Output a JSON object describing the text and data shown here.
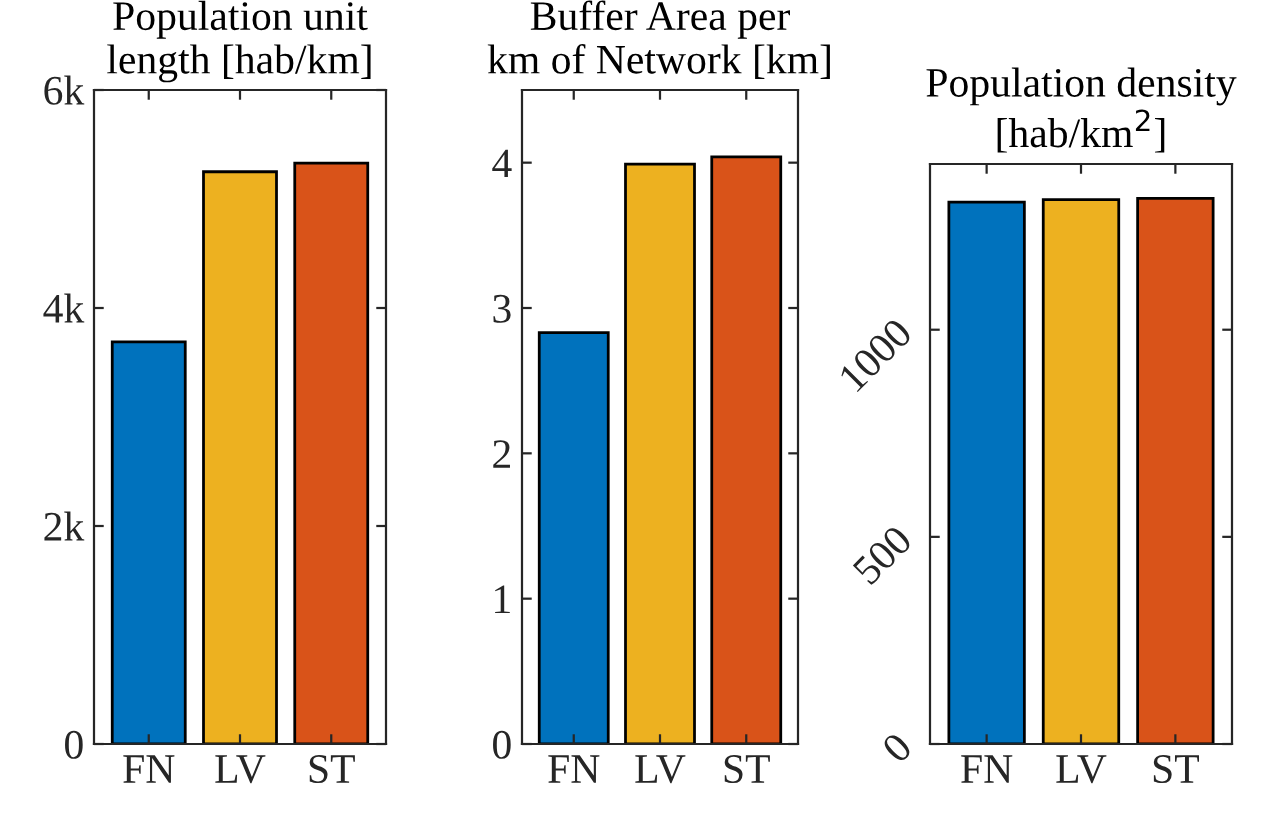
{
  "chart_data": [
    {
      "type": "bar",
      "title": "Population unit\nlength [hab/km]",
      "categories": [
        "FN",
        "LV",
        "ST"
      ],
      "values": [
        3690,
        5250,
        5330
      ],
      "colors": [
        "#0072bd",
        "#edb120",
        "#d95319"
      ],
      "ylim": [
        0,
        6000
      ],
      "yticks": [
        0,
        {
          "value": 2000,
          "label": "2k"
        },
        {
          "value": 4000,
          "label": "4k"
        },
        {
          "value": 6000,
          "label": "6k"
        }
      ]
    },
    {
      "type": "bar",
      "title": "Buffer Area per\nkm of Network [km]",
      "categories": [
        "FN",
        "LV",
        "ST"
      ],
      "values": [
        2.83,
        3.99,
        4.04
      ],
      "colors": [
        "#0072bd",
        "#edb120",
        "#d95319"
      ],
      "ylim": [
        0,
        4.5
      ],
      "yticks": [
        0,
        1,
        2,
        3,
        4
      ]
    },
    {
      "type": "bar",
      "title": "Population density\n[hab/km$^{2}$]",
      "categories": [
        "FN",
        "LV",
        "ST"
      ],
      "values": [
        1308,
        1314,
        1317
      ],
      "colors": [
        "#0072bd",
        "#edb120",
        "#d95319"
      ],
      "ylim": [
        0,
        1400
      ],
      "yticks": [
        0,
        500,
        1000
      ]
    }
  ]
}
